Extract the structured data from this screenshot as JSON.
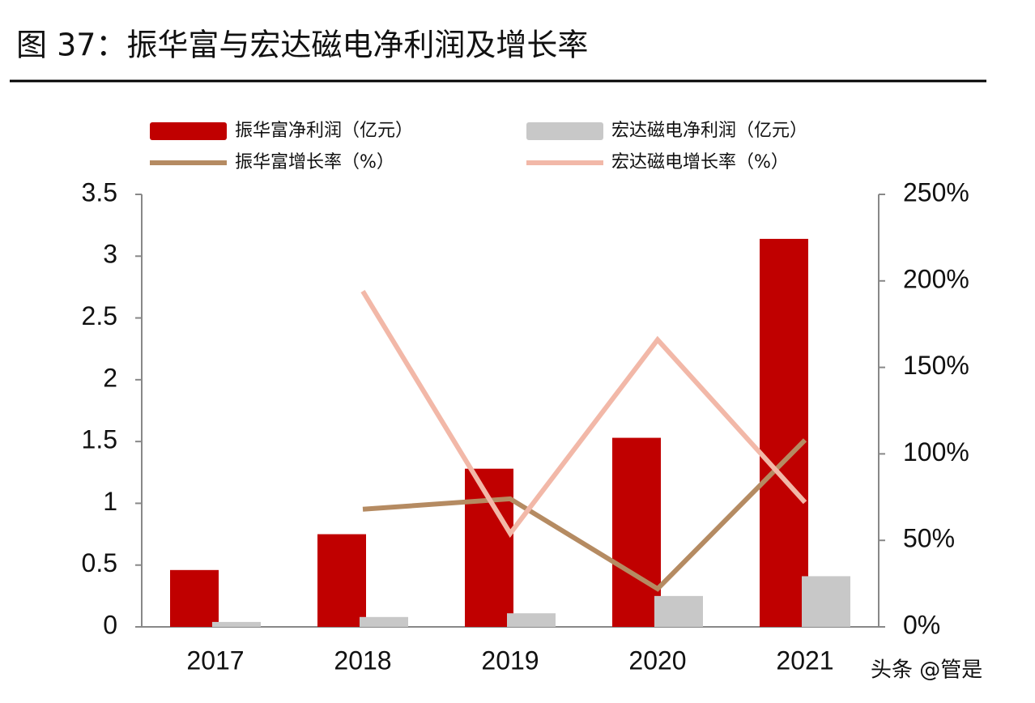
{
  "chart_data": {
    "type": "combo",
    "title": "图 37：振华富与宏达磁电净利润及增长率",
    "categories": [
      "2017",
      "2018",
      "2019",
      "2020",
      "2021"
    ],
    "series": [
      {
        "name": "振华富净利润（亿元）",
        "type": "bar",
        "color": "#c00000",
        "values": [
          0.46,
          0.75,
          1.28,
          1.53,
          3.14
        ]
      },
      {
        "name": "宏达磁电净利润（亿元）",
        "type": "bar",
        "color": "#c8c8c8",
        "values": [
          0.04,
          0.08,
          0.11,
          0.25,
          0.41
        ]
      },
      {
        "name": "振华富增长率（%）",
        "type": "line",
        "axis": "y2",
        "color": "#b58b62",
        "values": [
          null,
          68,
          74,
          22,
          108
        ]
      },
      {
        "name": "宏达磁电增长率（%）",
        "type": "line",
        "axis": "y2",
        "color": "#f2b8a8",
        "values": [
          null,
          194,
          54,
          166,
          72
        ]
      }
    ],
    "ylim": [
      0,
      3.5
    ],
    "yticks": [
      0,
      0.5,
      1,
      1.5,
      2,
      2.5,
      3,
      3.5
    ],
    "y2lim": [
      0,
      250
    ],
    "y2ticks": [
      {
        "value": 0,
        "label": "0%"
      },
      {
        "value": 50,
        "label": "50%"
      },
      {
        "value": 100,
        "label": "100%"
      },
      {
        "value": 150,
        "label": "150%"
      },
      {
        "value": 200,
        "label": "200%"
      },
      {
        "value": 250,
        "label": "250%"
      }
    ],
    "grid": false,
    "watermark": "头条 @管是"
  }
}
